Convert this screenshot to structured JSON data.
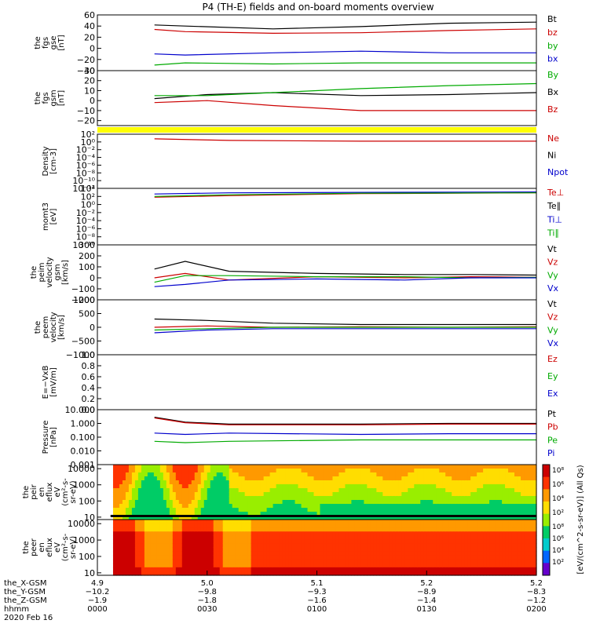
{
  "title": "P4 (TH-E) fields and on-board moments overview",
  "chart_data": {
    "type": "line",
    "panels": [
      {
        "id": "fgs_gse",
        "ylabel": [
          "the",
          "fgs",
          "gse",
          "[nT]"
        ],
        "ylim": [
          -40,
          60
        ],
        "ticks": [
          "60",
          "40",
          "20",
          "0",
          "−20",
          "−40"
        ],
        "tick_values": [
          60,
          40,
          20,
          0,
          -20,
          -40
        ],
        "legend": [
          {
            "name": "Bt",
            "color": "#000000"
          },
          {
            "name": "bz",
            "color": "#cc0000"
          },
          {
            "name": "by",
            "color": "#00aa00"
          },
          {
            "name": "bx",
            "color": "#0000cc"
          }
        ],
        "series": [
          {
            "name": "Bt",
            "color": "#000000",
            "x": [
              0.13,
              0.2,
              0.4,
              0.6,
              0.8,
              1.0
            ],
            "values": [
              42,
              40,
              35,
              39,
              45,
              47
            ]
          },
          {
            "name": "bz",
            "color": "#cc0000",
            "x": [
              0.13,
              0.2,
              0.4,
              0.6,
              0.8,
              1.0
            ],
            "values": [
              34,
              30,
              27,
              28,
              32,
              35
            ]
          },
          {
            "name": "by",
            "color": "#0000cc",
            "x": [
              0.13,
              0.2,
              0.4,
              0.6,
              0.8,
              1.0
            ],
            "values": [
              -10,
              -12,
              -8,
              -5,
              -8,
              -8
            ]
          },
          {
            "name": "bx",
            "color": "#00aa00",
            "x": [
              0.13,
              0.2,
              0.4,
              0.6,
              0.8,
              1.0
            ],
            "values": [
              -30,
              -26,
              -28,
              -26,
              -26,
              -26
            ]
          }
        ]
      },
      {
        "id": "fgs_gsm",
        "ylabel": [
          "the",
          "fgs",
          "gsm",
          "[nT]"
        ],
        "ylim": [
          -25,
          30
        ],
        "ticks": [
          "30",
          "20",
          "10",
          "0",
          "−10",
          "−20"
        ],
        "tick_values": [
          30,
          20,
          10,
          0,
          -10,
          -20
        ],
        "legend": [
          {
            "name": "By",
            "color": "#00aa00"
          },
          {
            "name": "Bx",
            "color": "#000000"
          },
          {
            "name": "Bz",
            "color": "#cc0000"
          }
        ],
        "series": [
          {
            "name": "Bx",
            "color": "#000000",
            "x": [
              0.13,
              0.25,
              0.4,
              0.6,
              0.8,
              1.0
            ],
            "values": [
              2,
              6,
              8,
              5,
              6,
              8
            ]
          },
          {
            "name": "By",
            "color": "#00aa00",
            "x": [
              0.13,
              0.25,
              0.4,
              0.6,
              0.8,
              1.0
            ],
            "values": [
              5,
              5,
              8,
              12,
              15,
              17
            ]
          },
          {
            "name": "Bz",
            "color": "#cc0000",
            "x": [
              0.13,
              0.25,
              0.4,
              0.6,
              0.8,
              1.0
            ],
            "values": [
              -2,
              0,
              -5,
              -10,
              -10,
              -10
            ]
          }
        ]
      },
      {
        "id": "density",
        "ylabel": [
          "Density",
          "[cm-3]"
        ],
        "ylim": [
          -12,
          2
        ],
        "log": true,
        "ticks": [
          "10²",
          "10⁰",
          "10⁻²",
          "10⁻⁴",
          "10⁻⁶",
          "10⁻⁸",
          "10⁻¹⁰",
          "10⁻¹²"
        ],
        "tick_values": [
          2,
          0,
          -2,
          -4,
          -6,
          -8,
          -10,
          -12
        ],
        "legend": [
          {
            "name": "Ne",
            "color": "#cc0000"
          },
          {
            "name": "Ni",
            "color": "#000000"
          },
          {
            "name": "Npot",
            "color": "#0000cc"
          }
        ],
        "series": [
          {
            "name": "Ne",
            "color": "#cc0000",
            "x": [
              0.13,
              0.3,
              0.6,
              1.0
            ],
            "values": [
              0.8,
              0.4,
              0.2,
              0.2
            ]
          }
        ]
      },
      {
        "id": "moms",
        "ylabel": [
          "momt3",
          "[eV]"
        ],
        "ylim": [
          -10,
          4
        ],
        "log": true,
        "ticks": [
          "10⁴",
          "10²",
          "10⁰",
          "10⁻²",
          "10⁻⁴",
          "10⁻⁶",
          "10⁻⁸",
          "10⁻¹⁰"
        ],
        "tick_values": [
          4,
          2,
          0,
          -2,
          -4,
          -6,
          -8,
          -10
        ],
        "legend": [
          {
            "name": "Te⊥",
            "color": "#cc0000"
          },
          {
            "name": "Te∥",
            "color": "#000000"
          },
          {
            "name": "Ti⊥",
            "color": "#0000cc"
          },
          {
            "name": "Ti∥",
            "color": "#00aa00"
          }
        ],
        "series": [
          {
            "name": "Ti⊥",
            "color": "#0000cc",
            "x": [
              0.13,
              0.3,
              0.6,
              1.0
            ],
            "values": [
              2.6,
              2.9,
              3.0,
              3.1
            ]
          },
          {
            "name": "Te⊥",
            "color": "#cc0000",
            "x": [
              0.13,
              0.3,
              0.6,
              1.0
            ],
            "values": [
              1.8,
              2.2,
              2.7,
              2.9
            ]
          },
          {
            "name": "Ti∥",
            "color": "#00aa00",
            "x": [
              0.13,
              0.3,
              0.6,
              1.0
            ],
            "values": [
              2.0,
              2.4,
              2.8,
              2.9
            ]
          }
        ]
      },
      {
        "id": "peim_velocity",
        "ylabel": [
          "the",
          "peim",
          "velocity",
          "gsm",
          "[km/s]"
        ],
        "ylim": [
          -200,
          300
        ],
        "ticks": [
          "300",
          "200",
          "100",
          "0",
          "−100",
          "−200"
        ],
        "tick_values": [
          300,
          200,
          100,
          0,
          -100,
          -200
        ],
        "legend": [
          {
            "name": "Vt",
            "color": "#000000"
          },
          {
            "name": "Vz",
            "color": "#cc0000"
          },
          {
            "name": "Vy",
            "color": "#00aa00"
          },
          {
            "name": "Vx",
            "color": "#0000cc"
          }
        ],
        "series": [
          {
            "name": "Vt",
            "color": "#000000",
            "x": [
              0.13,
              0.2,
              0.3,
              0.5,
              0.7,
              0.85,
              1.0
            ],
            "values": [
              80,
              150,
              60,
              40,
              30,
              30,
              25
            ]
          },
          {
            "name": "Vz",
            "color": "#cc0000",
            "x": [
              0.13,
              0.2,
              0.3,
              0.5,
              0.7,
              0.85,
              1.0
            ],
            "values": [
              0,
              40,
              -20,
              10,
              0,
              10,
              5
            ]
          },
          {
            "name": "Vy",
            "color": "#00aa00",
            "x": [
              0.13,
              0.2,
              0.3,
              0.5,
              0.7,
              0.85,
              1.0
            ],
            "values": [
              -40,
              20,
              20,
              10,
              10,
              0,
              5
            ]
          },
          {
            "name": "Vx",
            "color": "#0000cc",
            "x": [
              0.13,
              0.2,
              0.3,
              0.5,
              0.7,
              0.85,
              1.0
            ],
            "values": [
              -80,
              -60,
              -20,
              -10,
              -20,
              0,
              0
            ]
          }
        ]
      },
      {
        "id": "peem_velocity",
        "ylabel": [
          "the",
          "peem",
          "velocity",
          "[km/s]"
        ],
        "ylim": [
          -1000,
          1000
        ],
        "ticks": [
          "1000",
          "500",
          "0",
          "−500",
          "−1000"
        ],
        "tick_values": [
          1000,
          500,
          0,
          -500,
          -1000
        ],
        "legend": [
          {
            "name": "Vt",
            "color": "#000000"
          },
          {
            "name": "Vz",
            "color": "#cc0000"
          },
          {
            "name": "Vy",
            "color": "#00aa00"
          },
          {
            "name": "Vx",
            "color": "#0000cc"
          }
        ],
        "series": [
          {
            "name": "Vt",
            "color": "#000000",
            "x": [
              0.13,
              0.25,
              0.4,
              0.6,
              0.8,
              1.0
            ],
            "values": [
              300,
              250,
              150,
              100,
              100,
              100
            ]
          },
          {
            "name": "Vz",
            "color": "#cc0000",
            "x": [
              0.13,
              0.25,
              0.4,
              0.6,
              0.8,
              1.0
            ],
            "values": [
              0,
              50,
              0,
              20,
              0,
              20
            ]
          },
          {
            "name": "Vy",
            "color": "#00aa00",
            "x": [
              0.13,
              0.25,
              0.4,
              0.6,
              0.8,
              1.0
            ],
            "values": [
              -100,
              -50,
              0,
              0,
              0,
              0
            ]
          },
          {
            "name": "Vx",
            "color": "#0000cc",
            "x": [
              0.13,
              0.25,
              0.4,
              0.6,
              0.8,
              1.0
            ],
            "values": [
              -200,
              -100,
              -50,
              -50,
              -50,
              -50
            ]
          }
        ]
      },
      {
        "id": "efield",
        "ylabel": [
          "E=−VxB",
          "[mV/m]"
        ],
        "ylim": [
          0,
          1
        ],
        "ticks": [
          "1.0",
          "0.8",
          "0.6",
          "0.4",
          "0.2",
          "0.0"
        ],
        "tick_values": [
          1.0,
          0.8,
          0.6,
          0.4,
          0.2,
          0.0
        ],
        "legend": [
          {
            "name": "Ez",
            "color": "#cc0000"
          },
          {
            "name": "Ey",
            "color": "#00aa00"
          },
          {
            "name": "Ex",
            "color": "#0000cc"
          }
        ],
        "series": []
      },
      {
        "id": "pressure",
        "ylabel": [
          "Pressure",
          "[nPa]"
        ],
        "ylim": [
          -3,
          1
        ],
        "log": true,
        "ticks": [
          "10.000",
          "1.000",
          "0.100",
          "0.010",
          "0.001"
        ],
        "tick_values": [
          1,
          0,
          -1,
          -2,
          -3
        ],
        "legend": [
          {
            "name": "Pt",
            "color": "#000000"
          },
          {
            "name": "Pb",
            "color": "#cc0000"
          },
          {
            "name": "Pe",
            "color": "#00aa00"
          },
          {
            "name": "Pi",
            "color": "#0000cc"
          }
        ],
        "series": [
          {
            "name": "Pt",
            "color": "#000000",
            "x": [
              0.13,
              0.2,
              0.3,
              0.6,
              0.8,
              1.0
            ],
            "values": [
              0.45,
              0.1,
              -0.05,
              -0.05,
              0.0,
              0.0
            ]
          },
          {
            "name": "Pb",
            "color": "#cc0000",
            "x": [
              0.13,
              0.2,
              0.3,
              0.6,
              0.8,
              1.0
            ],
            "values": [
              0.4,
              0.05,
              -0.1,
              -0.1,
              -0.05,
              -0.05
            ]
          },
          {
            "name": "Pi",
            "color": "#0000cc",
            "x": [
              0.13,
              0.2,
              0.3,
              0.6,
              0.8,
              1.0
            ],
            "values": [
              -0.7,
              -0.8,
              -0.7,
              -0.8,
              -0.75,
              -0.75
            ]
          },
          {
            "name": "Pe",
            "color": "#00aa00",
            "x": [
              0.13,
              0.2,
              0.3,
              0.6,
              0.8,
              1.0
            ],
            "values": [
              -1.3,
              -1.4,
              -1.3,
              -1.2,
              -1.2,
              -1.2
            ]
          }
        ]
      },
      {
        "id": "peir_spec",
        "type": "heatmap",
        "ylabel": [
          "the",
          "peir",
          "en",
          "eflux",
          "eV",
          "(cm²-s-",
          "sr-eV)"
        ],
        "ticks": [
          "10000",
          "1000",
          "100",
          "10"
        ],
        "tick_values": [
          4,
          3,
          2,
          1
        ]
      },
      {
        "id": "peer_spec",
        "type": "heatmap",
        "ylabel": [
          "the",
          "peer",
          "en",
          "eflux",
          "eV",
          "(cm²-s-",
          "sr-eV)"
        ],
        "ticks": [
          "10000",
          "1000",
          "100",
          "10"
        ],
        "tick_values": [
          4,
          3,
          2,
          1
        ]
      }
    ],
    "colorbar": {
      "label": "[eV/(cm^2-s-sr-eV)] (All Qs)",
      "ticks": [
        "10⁸",
        "10⁶",
        "10⁴",
        "10²"
      ]
    },
    "x_axis": {
      "tick_positions": [
        0,
        0.25,
        0.5,
        0.75,
        1.0
      ],
      "rows": [
        {
          "label": "the_X-GSM",
          "values": [
            "4.9",
            "5.0",
            "5.1",
            "5.2",
            "5.2"
          ]
        },
        {
          "label": "the_Y-GSM",
          "values": [
            "−10.2",
            "−9.8",
            "−9.3",
            "−8.9",
            "−8.3"
          ]
        },
        {
          "label": "the_Z-GSM",
          "values": [
            "−1.9",
            "−1.8",
            "−1.6",
            "−1.4",
            "−1.2"
          ]
        },
        {
          "label": "hhmm",
          "values": [
            "0000",
            "0030",
            "0100",
            "0130",
            "0200"
          ]
        }
      ],
      "date": "2020 Feb 16"
    }
  }
}
